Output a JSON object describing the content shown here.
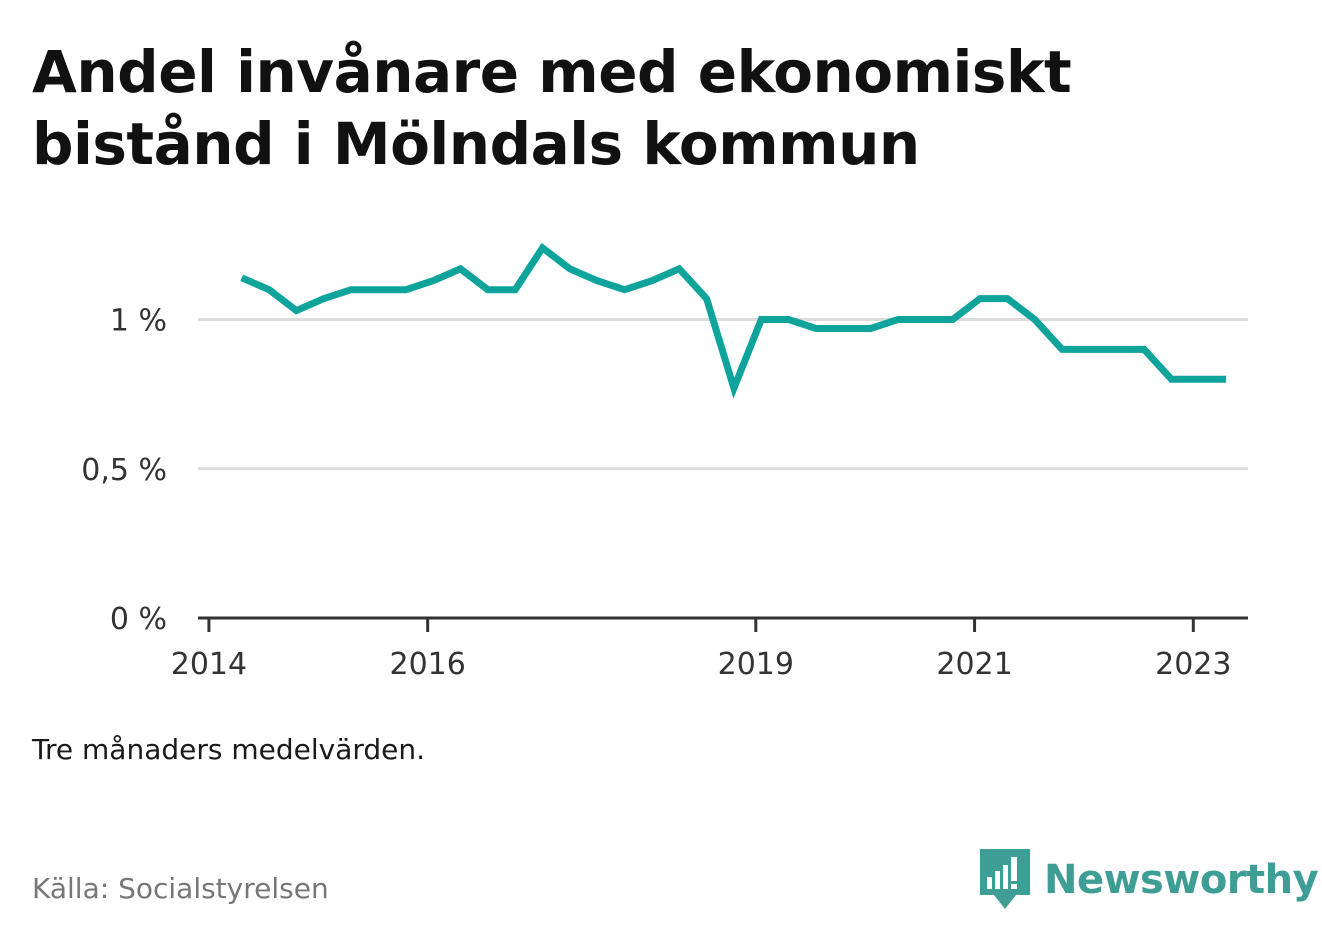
{
  "title": "Andel invånare med ekonomiskt bistånd i Mölndals kommun",
  "note": "Tre månaders medelvärden.",
  "source": "Källa: Socialstyrelsen",
  "brand": {
    "name": "Newsworthy",
    "icon": "newsworthy-logo-icon",
    "color": "#3e9e95"
  },
  "colors": {
    "line": "#0ea49b",
    "grid": "#dcdcdc",
    "axis": "#333333"
  },
  "chart_data": {
    "type": "line",
    "title": "Andel invånare med ekonomiskt bistånd i Mölndals kommun",
    "xlabel": "",
    "ylabel": "",
    "x_ticks": [
      2014,
      2016,
      2019,
      2021,
      2023
    ],
    "x_tick_labels": [
      "2014",
      "2016",
      "2019",
      "2021",
      "2023"
    ],
    "y_ticks": [
      0,
      0.5,
      1
    ],
    "y_tick_labels": [
      "0 %",
      "0,5 %",
      "1 %"
    ],
    "xlim": [
      2013.9,
      2023.5
    ],
    "ylim": [
      0,
      1.3
    ],
    "grid": "horizontal",
    "legend": "none",
    "series": [
      {
        "x": [
          2014.3,
          2014.55,
          2014.8,
          2015.05,
          2015.3,
          2015.55,
          2015.8,
          2016.05,
          2016.3,
          2016.55,
          2016.8,
          2017.05,
          2017.3,
          2017.55,
          2017.8,
          2018.05,
          2018.3,
          2018.55,
          2018.8,
          2019.05,
          2019.3,
          2019.55,
          2019.8,
          2020.05,
          2020.3,
          2020.55,
          2020.8,
          2021.05,
          2021.3,
          2021.55,
          2021.8,
          2022.05,
          2022.3,
          2022.55,
          2022.8,
          2023.05,
          2023.3
        ],
        "values": [
          1.14,
          1.1,
          1.03,
          1.07,
          1.1,
          1.1,
          1.1,
          1.13,
          1.17,
          1.1,
          1.1,
          1.24,
          1.17,
          1.13,
          1.1,
          1.13,
          1.17,
          1.07,
          0.77,
          1.0,
          1.0,
          0.97,
          0.97,
          0.97,
          1.0,
          1.0,
          1.0,
          1.07,
          1.07,
          1.0,
          0.9,
          0.9,
          0.9,
          0.9,
          0.8,
          0.8,
          0.8
        ]
      }
    ]
  }
}
